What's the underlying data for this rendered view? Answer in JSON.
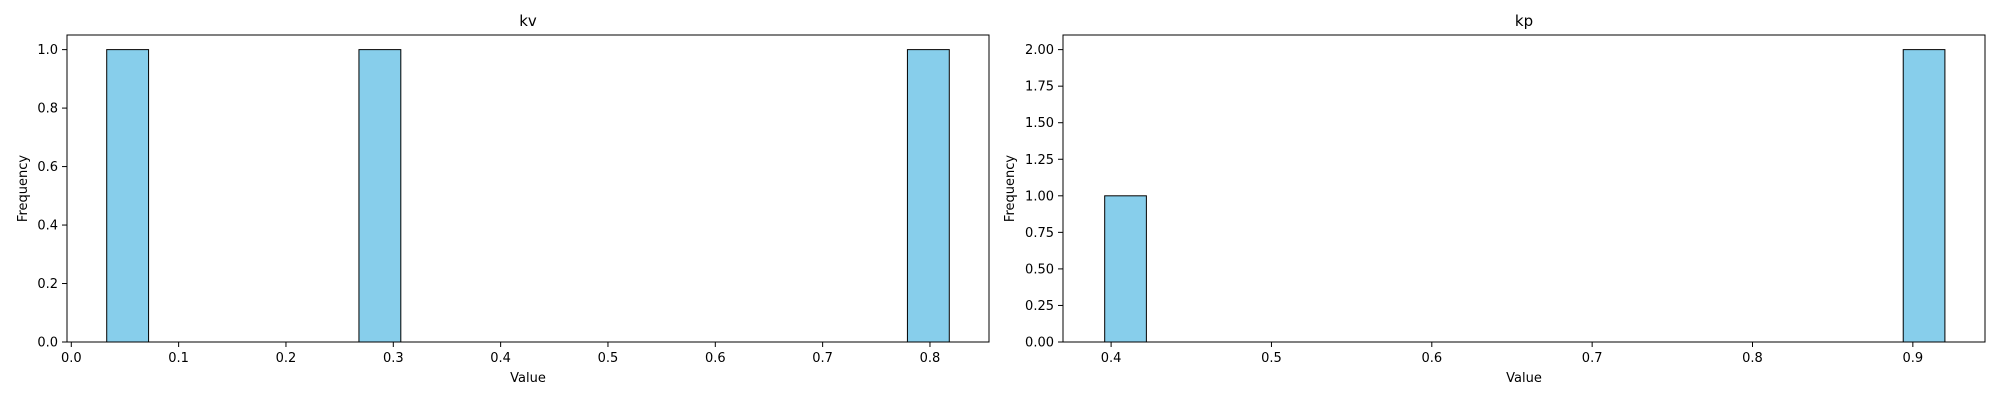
{
  "colors": {
    "bar_fill": "#87ceeb",
    "bar_edge": "#000000",
    "axes": "#000000",
    "background": "#ffffff"
  },
  "chart_data": [
    {
      "type": "bar",
      "title": "kv",
      "xlabel": "Value",
      "ylabel": "Frequency",
      "xlim": [
        -0.004,
        0.855
      ],
      "ylim": [
        0,
        1.05
      ],
      "xticks": [
        0.0,
        0.1,
        0.2,
        0.3,
        0.4,
        0.5,
        0.6,
        0.7,
        0.8
      ],
      "xtick_labels": [
        "0.0",
        "0.1",
        "0.2",
        "0.3",
        "0.4",
        "0.5",
        "0.6",
        "0.7",
        "0.8"
      ],
      "yticks": [
        0.0,
        0.2,
        0.4,
        0.6,
        0.8,
        1.0
      ],
      "ytick_labels": [
        "0.0",
        "0.2",
        "0.4",
        "0.6",
        "0.8",
        "1.0"
      ],
      "bins": [
        {
          "start": 0.033,
          "end": 0.072,
          "count": 1
        },
        {
          "start": 0.268,
          "end": 0.307,
          "count": 1
        },
        {
          "start": 0.779,
          "end": 0.818,
          "count": 1
        }
      ]
    },
    {
      "type": "bar",
      "title": "kp",
      "xlabel": "Value",
      "ylabel": "Frequency",
      "xlim": [
        0.37,
        0.945
      ],
      "ylim": [
        0,
        2.1
      ],
      "xticks": [
        0.4,
        0.5,
        0.6,
        0.7,
        0.8,
        0.9
      ],
      "xtick_labels": [
        "0.4",
        "0.5",
        "0.6",
        "0.7",
        "0.8",
        "0.9"
      ],
      "yticks": [
        0.0,
        0.25,
        0.5,
        0.75,
        1.0,
        1.25,
        1.5,
        1.75,
        2.0
      ],
      "ytick_labels": [
        "0.00",
        "0.25",
        "0.50",
        "0.75",
        "1.00",
        "1.25",
        "1.50",
        "1.75",
        "2.00"
      ],
      "bins": [
        {
          "start": 0.396,
          "end": 0.422,
          "count": 1
        },
        {
          "start": 0.894,
          "end": 0.92,
          "count": 2
        }
      ]
    }
  ]
}
